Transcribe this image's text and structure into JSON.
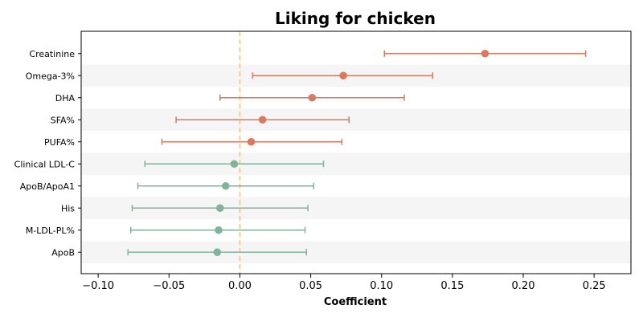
{
  "chart_data": {
    "type": "forest",
    "title": "Liking for chicken",
    "xlabel": "Coefficient",
    "ylabel": "",
    "xlim": [
      -0.112,
      0.276
    ],
    "xticks": [
      -0.1,
      -0.05,
      0.0,
      0.05,
      0.1,
      0.15,
      0.2,
      0.25
    ],
    "xtick_labels": [
      "−0.10",
      "−0.05",
      "0.00",
      "0.05",
      "0.10",
      "0.15",
      "0.20",
      "0.25"
    ],
    "reference_line": 0.0,
    "reference_line_color": "#f5c07a",
    "stripe_color": "#f5f5f5",
    "series_colors": {
      "positive": "#d9795f",
      "negative": "#7fb39a"
    },
    "items": [
      {
        "label": "Creatinine",
        "estimate": 0.173,
        "ci_low": 0.102,
        "ci_high": 0.244,
        "group": "positive"
      },
      {
        "label": "Omega-3%",
        "estimate": 0.073,
        "ci_low": 0.009,
        "ci_high": 0.136,
        "group": "positive"
      },
      {
        "label": "DHA",
        "estimate": 0.051,
        "ci_low": -0.014,
        "ci_high": 0.116,
        "group": "positive"
      },
      {
        "label": "SFA%",
        "estimate": 0.016,
        "ci_low": -0.045,
        "ci_high": 0.077,
        "group": "positive"
      },
      {
        "label": "PUFA%",
        "estimate": 0.008,
        "ci_low": -0.055,
        "ci_high": 0.072,
        "group": "positive"
      },
      {
        "label": "Clinical LDL-C",
        "estimate": -0.004,
        "ci_low": -0.067,
        "ci_high": 0.059,
        "group": "negative"
      },
      {
        "label": "ApoB/ApoA1",
        "estimate": -0.01,
        "ci_low": -0.072,
        "ci_high": 0.052,
        "group": "negative"
      },
      {
        "label": "His",
        "estimate": -0.014,
        "ci_low": -0.076,
        "ci_high": 0.048,
        "group": "negative"
      },
      {
        "label": "M-LDL-PL%",
        "estimate": -0.015,
        "ci_low": -0.077,
        "ci_high": 0.046,
        "group": "negative"
      },
      {
        "label": "ApoB",
        "estimate": -0.016,
        "ci_low": -0.079,
        "ci_high": 0.047,
        "group": "negative"
      }
    ]
  }
}
